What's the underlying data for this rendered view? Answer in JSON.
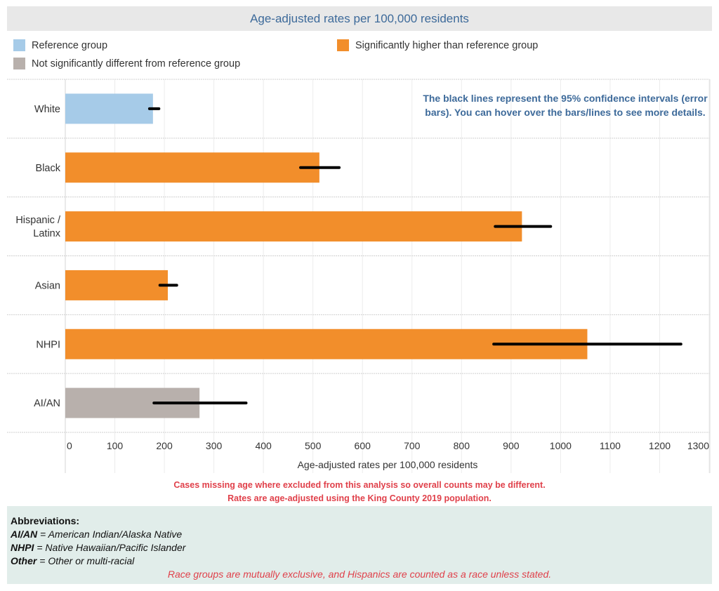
{
  "title": "Age-adjusted rates per 100,000 residents",
  "legend": [
    {
      "label": "Reference group",
      "color": "#a6cbe8"
    },
    {
      "label": "Not significantly different from reference group",
      "color": "#b8b0ac"
    },
    {
      "label": "Significantly higher than reference group",
      "color": "#f28e2b"
    }
  ],
  "note": "The black lines represent the 95% confidence intervals (error bars). You can hover over the bars/lines to see more details.",
  "footnotes": [
    "Cases missing age where excluded from this analysis so overall counts may be different.",
    "Rates are age-adjusted using the King County 2019 population."
  ],
  "abbreviations": {
    "heading": "Abbreviations:",
    "items": [
      {
        "abbr": "AI/AN",
        "sep": " = ",
        "full": "American Indian/Alaska Native"
      },
      {
        "abbr": "NHPI",
        "sep": " = ",
        "full": "Native Hawaiian/Pacific Islander"
      },
      {
        "abbr": "Other",
        "sep": " = ",
        "full": "Other or multi-racial"
      }
    ],
    "race_note": "Race groups are mutually exclusive, and Hispanics are counted as a race unless stated."
  },
  "chart_data": {
    "type": "bar",
    "orientation": "horizontal",
    "title": "Age-adjusted rates per 100,000 residents",
    "xlabel": "Age-adjusted rates per 100,000 residents",
    "ylabel": "",
    "xlim": [
      0,
      1300
    ],
    "xticks": [
      0,
      100,
      200,
      300,
      400,
      500,
      600,
      700,
      800,
      900,
      1000,
      1100,
      1200,
      1300
    ],
    "grid": true,
    "categories": [
      "White",
      "Black",
      "Hispanic / Latinx",
      "Asian",
      "NHPI",
      "AI/AN"
    ],
    "category_lines": [
      [
        "White"
      ],
      [
        "Black"
      ],
      [
        "Hispanic /",
        "Latinx"
      ],
      [
        "Asian"
      ],
      [
        "NHPI"
      ],
      [
        "AI/AN"
      ]
    ],
    "values": [
      177,
      513,
      922,
      207,
      1054,
      271
    ],
    "ci_lower": [
      170,
      475,
      868,
      191,
      865,
      179
    ],
    "ci_upper": [
      189,
      553,
      980,
      225,
      1243,
      365
    ],
    "significance": [
      "Reference group",
      "Significantly higher than reference group",
      "Significantly higher than reference group",
      "Significantly higher than reference group",
      "Significantly higher than reference group",
      "Not significantly different from reference group"
    ],
    "colors": {
      "Reference group": "#a6cbe8",
      "Significantly higher than reference group": "#f28e2b",
      "Not significantly different from reference group": "#b8b0ac",
      "error_bar": "#000000"
    }
  }
}
